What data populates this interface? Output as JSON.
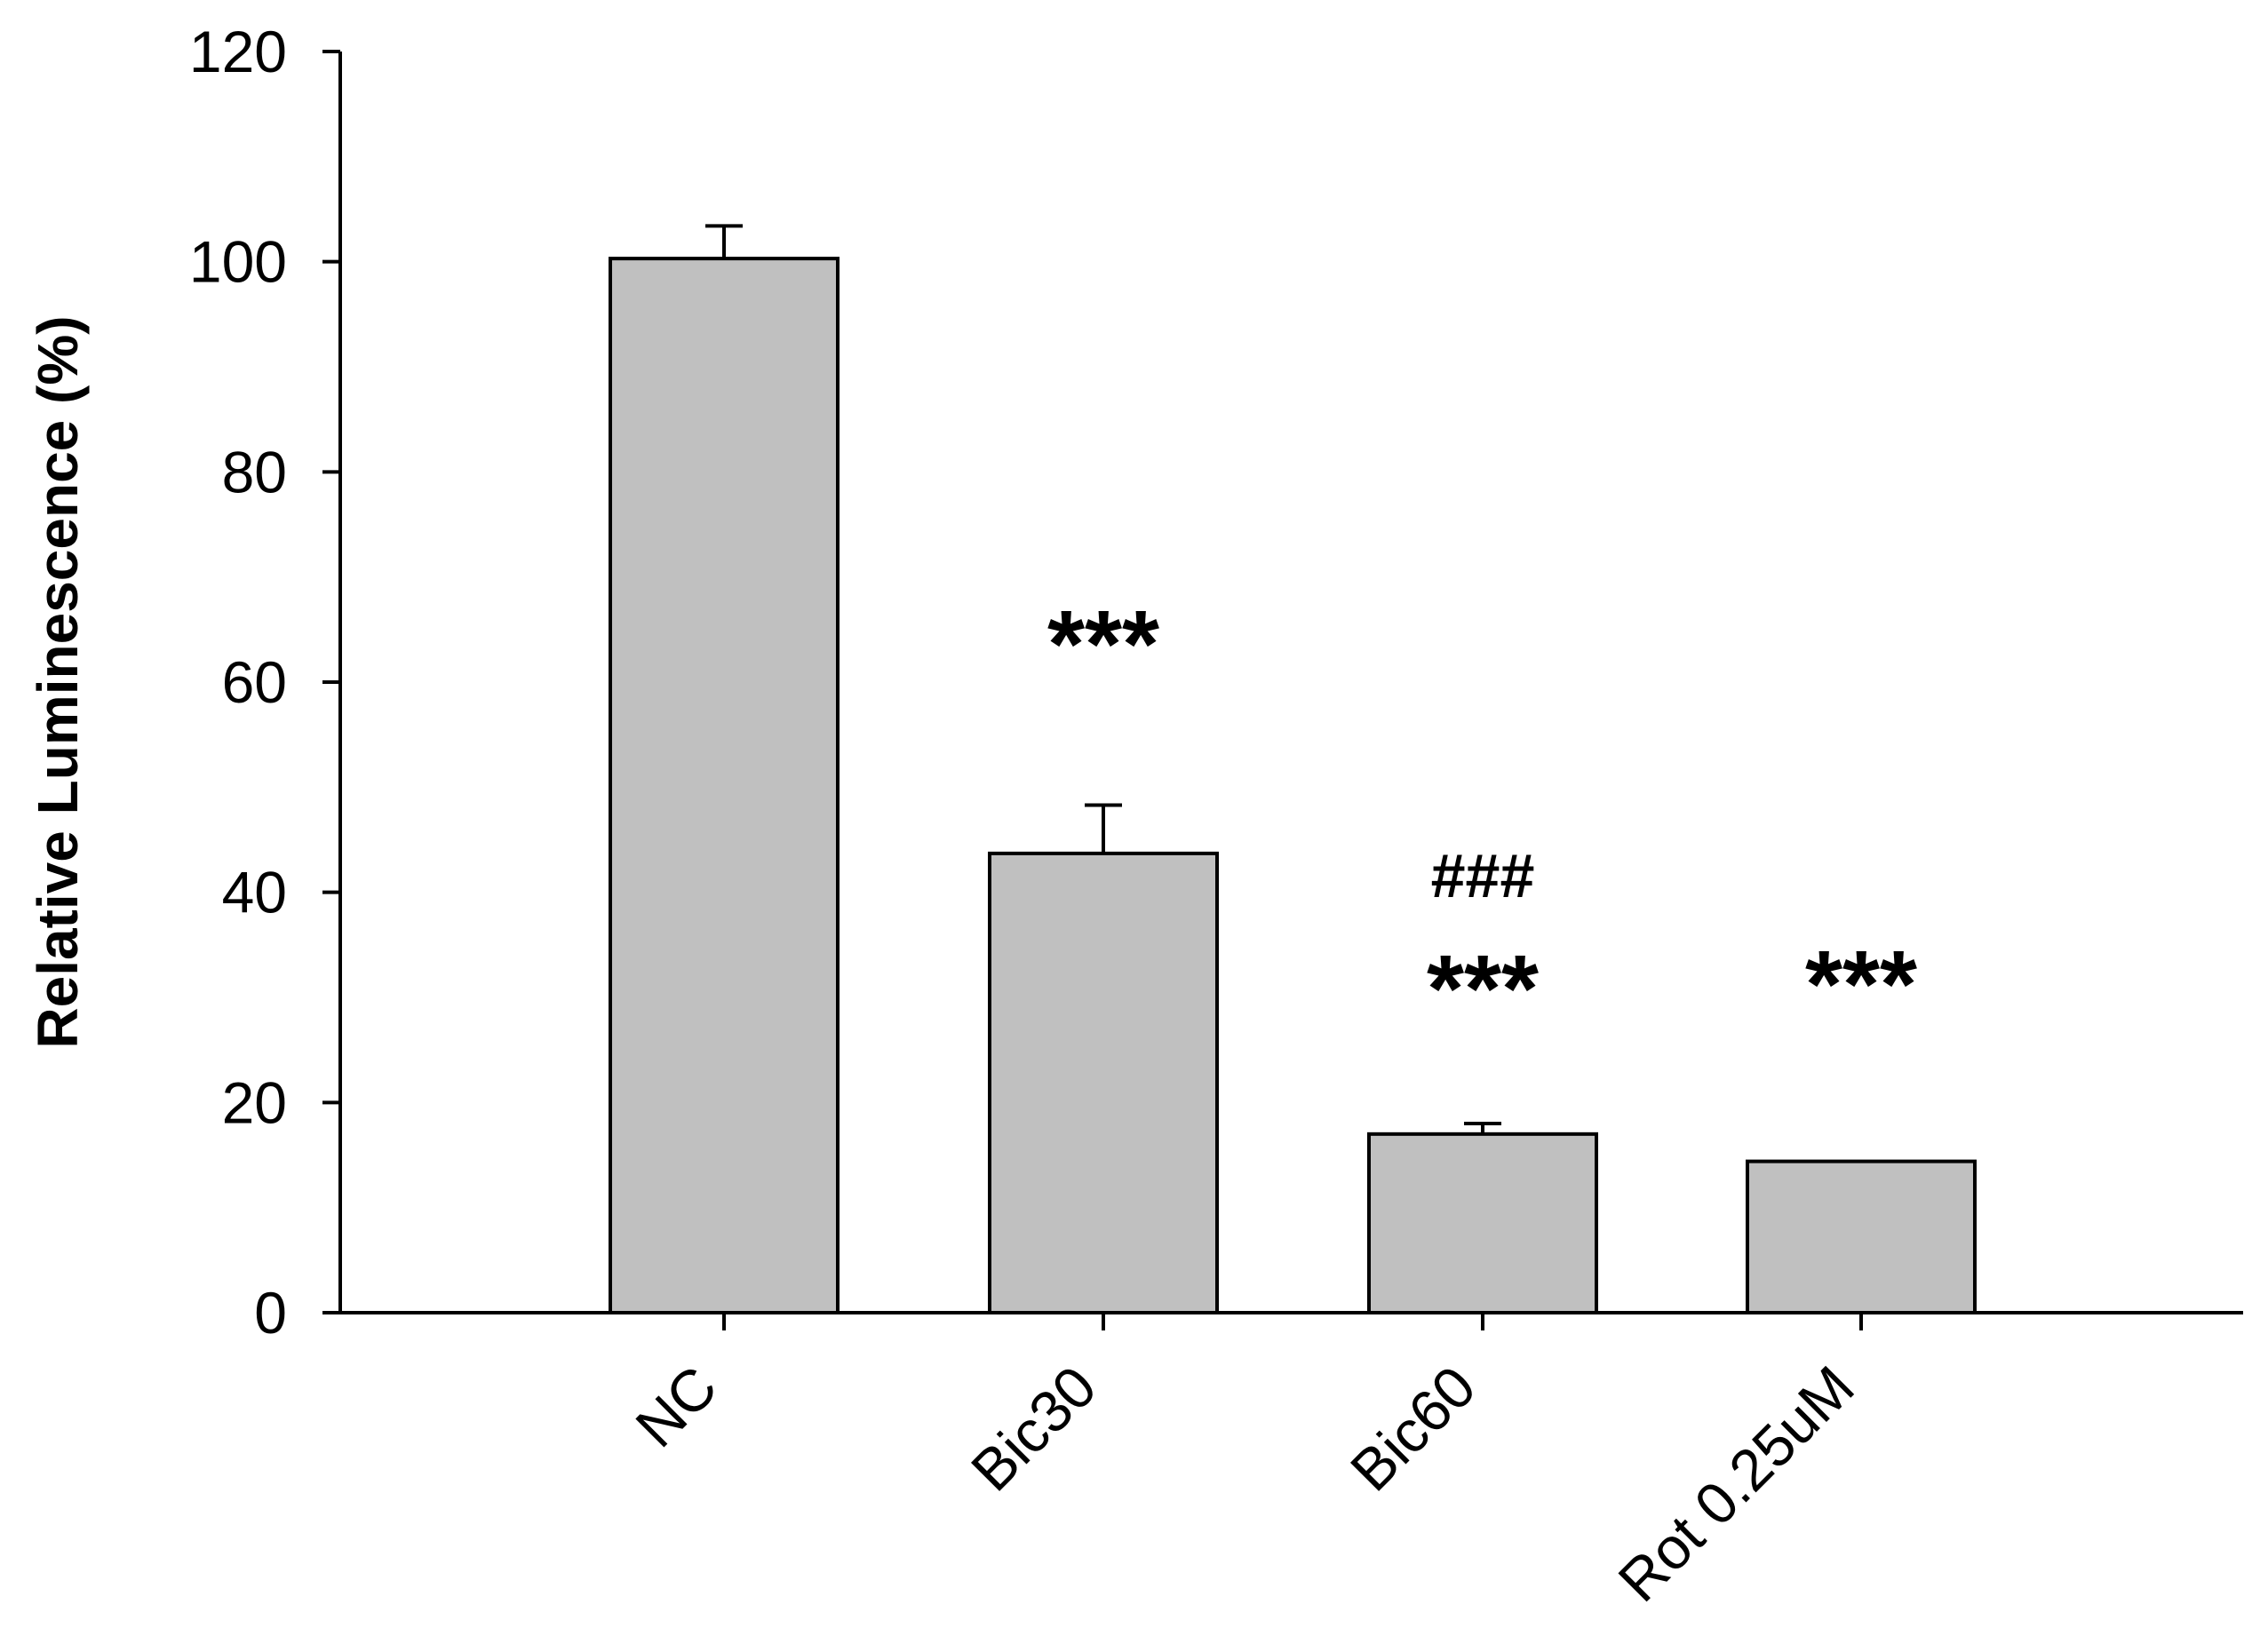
{
  "chart_data": {
    "type": "bar",
    "title": "",
    "xlabel": "",
    "ylabel": "Relative Luminescence (%)",
    "ylim": [
      0,
      120
    ],
    "yticks": [
      "0",
      "20",
      "40",
      "60",
      "80",
      "100",
      "120"
    ],
    "categories": [
      "NC",
      "Bic30",
      "Bic60",
      "Rot 0.25uM"
    ],
    "values": [
      100.3,
      43.7,
      17.0,
      14.4
    ],
    "errors": [
      3.1,
      4.6,
      1.0,
      0
    ],
    "annotations": [
      {
        "category": "Bic30",
        "lines": [
          "***"
        ]
      },
      {
        "category": "Bic60",
        "lines": [
          "###",
          "***"
        ]
      },
      {
        "category": "Rot 0.25uM",
        "lines": [
          "***"
        ]
      }
    ],
    "grid": false,
    "legend": "none",
    "colors": {
      "bar_fill": "#c0c0c0",
      "bar_stroke": "#000000",
      "axis": "#000000"
    }
  }
}
